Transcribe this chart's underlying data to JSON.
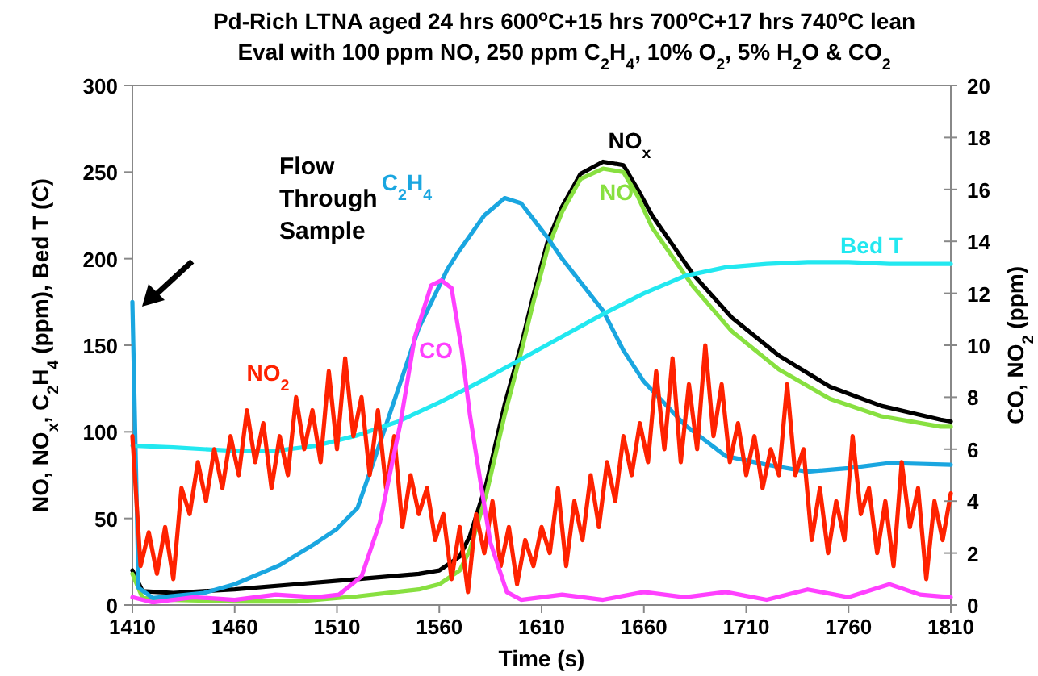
{
  "chart_data": {
    "type": "line",
    "title": "Pd-Rich LTNA aged 24 hrs 600$^{o}$C+15 hrs 700$^{o}$C+17 hrs 740$^{o}$C lean",
    "subtitle": "Eval with 100 ppm NO, 250 ppm C$_{2}$H$_{4}$, 10% O$_{2}$, 5% H$_{2}$O & CO$_{2}$",
    "xlabel": "Time (s)",
    "ylabel": "NO, NO$_{x}$, C$_{2}$H$_{4}$ (ppm), Bed T (C)",
    "y2label": "CO, NO$_{2}$ (ppm)",
    "xlim": [
      1410,
      1810
    ],
    "xticks": [
      1410,
      1460,
      1510,
      1560,
      1610,
      1660,
      1710,
      1760,
      1810
    ],
    "ylim": [
      0,
      300
    ],
    "yticks": [
      0,
      50,
      100,
      150,
      200,
      250,
      300
    ],
    "y2lim": [
      0,
      20
    ],
    "y2ticks": [
      0,
      2,
      4,
      6,
      8,
      10,
      12,
      14,
      16,
      18,
      20
    ],
    "grid": false,
    "marker": "none",
    "line_style": "solid",
    "annotations": [
      "Flow Through Sample"
    ],
    "series": [
      {
        "name": "NO$_{x}$",
        "color": "#000000",
        "x": [
          1410,
          1415,
          1430,
          1460,
          1490,
          1520,
          1550,
          1560,
          1570,
          1575,
          1583,
          1592,
          1600,
          1606,
          1613,
          1620,
          1629,
          1640,
          1650,
          1657,
          1664,
          1684,
          1703,
          1726,
          1751,
          1776,
          1805,
          1810
        ],
        "values": [
          20,
          8,
          7,
          9,
          12,
          15,
          18,
          20,
          28,
          40,
          70,
          116,
          150,
          179,
          210,
          230,
          249,
          256,
          254,
          240,
          225,
          191,
          166,
          144,
          126,
          115,
          107,
          106
        ]
      },
      {
        "name": "NO",
        "color": "#88e040",
        "x": [
          1410,
          1415,
          1430,
          1460,
          1490,
          1520,
          1550,
          1560,
          1570,
          1575,
          1583,
          1592,
          1600,
          1606,
          1613,
          1620,
          1629,
          1640,
          1650,
          1657,
          1664,
          1684,
          1703,
          1726,
          1751,
          1776,
          1805,
          1810
        ],
        "values": [
          18,
          4,
          3,
          2,
          2,
          5,
          9,
          12,
          20,
          32,
          64,
          110,
          146,
          175,
          206,
          227,
          246,
          252,
          250,
          236,
          218,
          184,
          158,
          136,
          119,
          109,
          103,
          103
        ]
      },
      {
        "name": "C$_{2}$H$_{4}$",
        "color": "#1aa6e0",
        "x": [
          1410,
          1413,
          1420,
          1445,
          1460,
          1482,
          1500,
          1510,
          1520,
          1530,
          1540,
          1550,
          1564,
          1570,
          1582,
          1592,
          1600,
          1613,
          1620,
          1630,
          1640,
          1650,
          1660,
          1680,
          1700,
          1720,
          1740,
          1760,
          1780,
          1810
        ],
        "values": [
          175,
          10,
          4,
          7,
          12,
          23,
          36,
          44,
          56,
          90,
          125,
          160,
          194,
          205,
          225,
          235,
          232,
          212,
          200,
          185,
          170,
          147,
          129,
          104,
          86,
          81,
          77,
          79,
          82,
          81
        ]
      },
      {
        "name": "Bed T",
        "color": "#22e8f0",
        "x": [
          1410,
          1430,
          1460,
          1480,
          1500,
          1520,
          1540,
          1560,
          1580,
          1600,
          1620,
          1640,
          1660,
          1680,
          1700,
          1720,
          1740,
          1760,
          1780,
          1810
        ],
        "values": [
          92,
          91,
          89,
          89,
          92,
          98,
          106,
          117,
          129,
          142,
          155,
          168,
          180,
          190,
          195,
          197,
          198,
          198,
          197,
          197
        ]
      },
      {
        "name": "NO$_{2}$",
        "color": "#ff2200",
        "axis": "y2",
        "x": [
          1410,
          1414,
          1418,
          1422,
          1426,
          1430,
          1434,
          1438,
          1442,
          1446,
          1450,
          1454,
          1458,
          1462,
          1466,
          1470,
          1474,
          1478,
          1482,
          1486,
          1490,
          1494,
          1498,
          1502,
          1506,
          1510,
          1514,
          1518,
          1522,
          1526,
          1530,
          1534,
          1538,
          1542,
          1546,
          1550,
          1554,
          1558,
          1562,
          1566,
          1570,
          1574,
          1578,
          1582,
          1586,
          1590,
          1594,
          1598,
          1602,
          1606,
          1610,
          1614,
          1618,
          1622,
          1626,
          1630,
          1634,
          1638,
          1642,
          1646,
          1650,
          1654,
          1658,
          1662,
          1666,
          1670,
          1674,
          1678,
          1682,
          1686,
          1690,
          1694,
          1698,
          1702,
          1706,
          1710,
          1714,
          1718,
          1722,
          1726,
          1730,
          1734,
          1738,
          1742,
          1746,
          1750,
          1754,
          1758,
          1762,
          1766,
          1770,
          1774,
          1778,
          1782,
          1786,
          1790,
          1794,
          1798,
          1802,
          1806,
          1810
        ],
        "values": [
          6.5,
          1.5,
          2.8,
          1.2,
          3.0,
          1.0,
          4.5,
          3.5,
          5.5,
          4.0,
          6.0,
          4.5,
          6.5,
          5.0,
          7.5,
          5.5,
          7.0,
          4.5,
          6.5,
          5.0,
          8.0,
          6.0,
          7.5,
          5.5,
          9.0,
          6.0,
          9.5,
          6.5,
          8.0,
          5.0,
          7.5,
          4.5,
          6.5,
          3.0,
          5.0,
          3.5,
          4.5,
          2.5,
          3.5,
          1.0,
          3.0,
          0.5,
          3.5,
          2.0,
          4.0,
          1.5,
          3.0,
          0.8,
          2.5,
          1.5,
          3.0,
          2.0,
          4.5,
          1.5,
          4.0,
          2.5,
          5.0,
          3.0,
          5.5,
          4.0,
          6.5,
          5.0,
          7.0,
          5.5,
          9.0,
          6.0,
          9.5,
          5.5,
          8.5,
          6.0,
          10.0,
          6.5,
          8.5,
          5.5,
          7.0,
          5.0,
          6.5,
          4.5,
          6.0,
          5.0,
          8.5,
          5.0,
          6.0,
          2.5,
          4.5,
          2.0,
          4.0,
          2.5,
          6.5,
          3.5,
          4.5,
          2.0,
          4.0,
          1.5,
          5.5,
          3.0,
          4.5,
          1.0,
          4.0,
          2.5,
          4.3
        ]
      },
      {
        "name": "CO",
        "color": "#ff40ff",
        "axis": "y2",
        "x": [
          1410,
          1420,
          1440,
          1460,
          1480,
          1500,
          1511,
          1522,
          1531,
          1541,
          1548,
          1556,
          1561,
          1566,
          1571,
          1575,
          1580,
          1585,
          1593,
          1600,
          1620,
          1640,
          1660,
          1680,
          1700,
          1720,
          1740,
          1760,
          1780,
          1795,
          1810
        ],
        "values": [
          0.3,
          0.1,
          0.3,
          0.2,
          0.4,
          0.3,
          0.4,
          1.1,
          3.2,
          7.0,
          10.3,
          12.3,
          12.5,
          12.2,
          9.8,
          7.3,
          4.8,
          2.4,
          0.5,
          0.2,
          0.4,
          0.2,
          0.5,
          0.3,
          0.5,
          0.2,
          0.6,
          0.3,
          0.8,
          0.4,
          0.3
        ]
      }
    ]
  }
}
